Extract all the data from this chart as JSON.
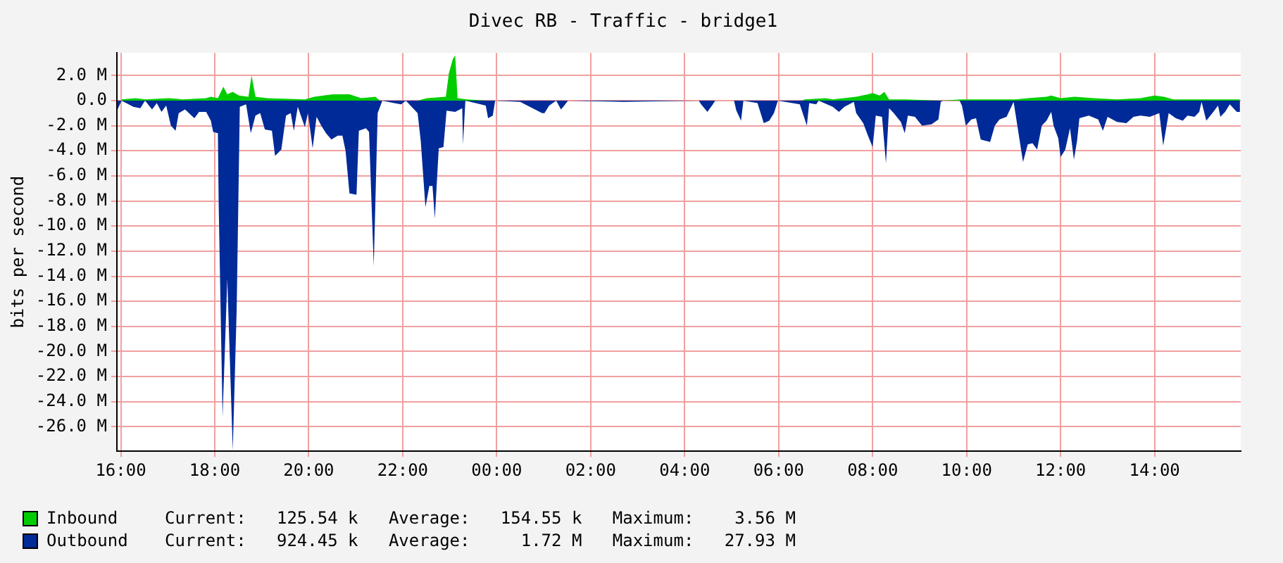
{
  "chart_data": {
    "type": "area",
    "title": "Divec RB - Traffic - bridge1",
    "ylabel": "bits per second",
    "xlim": [
      "--01-01T15:55",
      "--01-02T15:50"
    ],
    "xticks": [
      {
        "value": "--01-01T16:00",
        "label": "16:00"
      },
      {
        "value": "--01-01T18:00",
        "label": "18:00"
      },
      {
        "value": "--01-01T20:00",
        "label": "20:00"
      },
      {
        "value": "--01-01T22:00",
        "label": "22:00"
      },
      {
        "value": "--01-02T00:00",
        "label": "00:00"
      },
      {
        "value": "--01-02T02:00",
        "label": "02:00"
      },
      {
        "value": "--01-02T04:00",
        "label": "04:00"
      },
      {
        "value": "--01-02T06:00",
        "label": "06:00"
      },
      {
        "value": "--01-02T08:00",
        "label": "08:00"
      },
      {
        "value": "--01-02T10:00",
        "label": "10:00"
      },
      {
        "value": "--01-02T12:00",
        "label": "12:00"
      },
      {
        "value": "--01-02T14:00",
        "label": "14:00"
      }
    ],
    "ylim": [
      -27.95,
      3.8
    ],
    "yticks": [
      {
        "value": 2,
        "label": "2.0 M"
      },
      {
        "value": 0,
        "label": "0.0"
      },
      {
        "value": -2,
        "label": "-2.0 M"
      },
      {
        "value": -4,
        "label": "-4.0 M"
      },
      {
        "value": -6,
        "label": "-6.0 M"
      },
      {
        "value": -8,
        "label": "-8.0 M"
      },
      {
        "value": -10,
        "label": "-10.0 M"
      },
      {
        "value": -12,
        "label": "-12.0 M"
      },
      {
        "value": -14,
        "label": "-14.0 M"
      },
      {
        "value": -16,
        "label": "-16.0 M"
      },
      {
        "value": -18,
        "label": "-18.0 M"
      },
      {
        "value": -20,
        "label": "-20.0 M"
      },
      {
        "value": -22,
        "label": "-22.0 M"
      },
      {
        "value": -24,
        "label": "-24.0 M"
      },
      {
        "value": -26,
        "label": "-26.0 M"
      }
    ],
    "grid": true,
    "legend": "bottom left",
    "series": [
      {
        "name": "Inbound",
        "color": "#00cc00",
        "x": [
          "--01-01T16:01",
          "--01-01T16:19",
          "--01-01T16:31",
          "--01-01T17:01",
          "--01-01T17:19",
          "--01-01T17:49",
          "--01-01T17:55",
          "--01-01T18:04",
          "--01-01T18:11",
          "--01-01T18:16",
          "--01-01T18:23",
          "--01-01T18:31",
          "--01-01T18:43",
          "--01-01T18:47",
          "--01-01T18:52",
          "--01-01T19:07",
          "--01-01T19:55",
          "--01-01T20:07",
          "--01-01T20:31",
          "--01-01T20:52",
          "--01-01T21:07",
          "--01-01T21:25",
          "--01-01T21:31",
          "--01-01T22:19",
          "--01-01T22:31",
          "--01-01T22:55",
          "--01-01T22:59",
          "--01-01T23:04",
          "--01-01T23:07",
          "--01-01T23:10",
          "--01-01T23:22",
          "--01-01T23:49",
          "--01-02T00:31",
          "--01-02T06:30",
          "--01-02T06:33",
          "--01-02T07:00",
          "--01-02T07:09",
          "--01-02T07:39",
          "--01-02T07:54",
          "--01-02T08:00",
          "--01-02T08:09",
          "--01-02T08:15",
          "--01-02T08:21",
          "--01-02T08:42",
          "--01-02T09:27",
          "--01-02T09:54",
          "--01-02T11:03",
          "--01-02T11:18",
          "--01-02T11:42",
          "--01-02T11:48",
          "--01-02T12:00",
          "--01-02T12:18",
          "--01-02T12:42",
          "--01-02T13:12",
          "--01-02T13:42",
          "--01-02T14:00",
          "--01-02T14:12",
          "--01-02T14:24",
          "--01-02T15:00",
          "--01-02T15:49"
        ],
        "values": [
          0.1,
          0.2,
          0.1,
          0.2,
          0.1,
          0.2,
          0.3,
          0.2,
          1.1,
          0.5,
          0.7,
          0.4,
          0.3,
          2.0,
          0.3,
          0.2,
          0.1,
          0.3,
          0.5,
          0.5,
          0.2,
          0.3,
          0,
          0,
          0.2,
          0.3,
          2.2,
          3.3,
          3.6,
          0.2,
          0.1,
          0,
          0,
          0,
          0.1,
          0.2,
          0.1,
          0.3,
          0.5,
          0.6,
          0.4,
          0.7,
          0.1,
          0.1,
          0,
          0.1,
          0.1,
          0.2,
          0.3,
          0.4,
          0.2,
          0.3,
          0.2,
          0.1,
          0.2,
          0.4,
          0.3,
          0.1,
          0.1,
          0.1
        ]
      },
      {
        "name": "Outbound",
        "color": "#002a97",
        "x": [
          "--01-01T15:56",
          "--01-01T16:01",
          "--01-01T16:16",
          "--01-01T16:25",
          "--01-01T16:31",
          "--01-01T16:40",
          "--01-01T16:46",
          "--01-01T16:52",
          "--01-01T16:58",
          "--01-01T17:04",
          "--01-01T17:10",
          "--01-01T17:14",
          "--01-01T17:22",
          "--01-01T17:34",
          "--01-01T17:40",
          "--01-01T17:49",
          "--01-01T17:55",
          "--01-01T17:58",
          "--01-01T18:04",
          "--01-01T18:05",
          "--01-01T18:10",
          "--01-01T18:16",
          "--01-01T18:23",
          "--01-01T18:28",
          "--01-01T18:32",
          "--01-01T18:40",
          "--01-01T18:46",
          "--01-01T18:52",
          "--01-01T18:58",
          "--01-01T19:04",
          "--01-01T19:13",
          "--01-01T19:17",
          "--01-01T19:25",
          "--01-01T19:31",
          "--01-01T19:37",
          "--01-01T19:41",
          "--01-01T19:46",
          "--01-01T19:55",
          "--01-01T19:59",
          "--01-01T20:05",
          "--01-01T20:10",
          "--01-01T20:16",
          "--01-01T20:22",
          "--01-01T20:29",
          "--01-01T20:37",
          "--01-01T20:43",
          "--01-01T20:47",
          "--01-01T20:52",
          "--01-01T21:01",
          "--01-01T21:04",
          "--01-01T21:13",
          "--01-01T21:17",
          "--01-01T21:23",
          "--01-01T21:28",
          "--01-01T21:34",
          "--01-01T21:49",
          "--01-01T21:58",
          "--01-01T22:04",
          "--01-01T22:19",
          "--01-01T22:23",
          "--01-01T22:29",
          "--01-01T22:34",
          "--01-01T22:38",
          "--01-01T22:41",
          "--01-01T22:46",
          "--01-01T22:52",
          "--01-01T22:56",
          "--01-01T23:07",
          "--01-01T23:16",
          "--01-01T23:17",
          "--01-01T23:20",
          "--01-01T23:46",
          "--01-01T23:49",
          "--01-01T23:55",
          "--01-01T23:58",
          "--01-02T00:30",
          "--01-02T00:58",
          "--01-02T01:01",
          "--01-02T01:07",
          "--01-02T01:16",
          "--01-02T01:22",
          "--01-02T01:25",
          "--01-02T01:31",
          "--01-02T02:42",
          "--01-02T04:18",
          "--01-02T04:21",
          "--01-02T04:29",
          "--01-02T04:36",
          "--01-02T04:39",
          "--01-02T05:03",
          "--01-02T05:06",
          "--01-02T05:12",
          "--01-02T05:15",
          "--01-02T05:33",
          "--01-02T05:41",
          "--01-02T05:48",
          "--01-02T05:54",
          "--01-02T05:59",
          "--01-02T06:27",
          "--01-02T06:36",
          "--01-02T06:39",
          "--01-02T06:48",
          "--01-02T06:51",
          "--01-02T07:09",
          "--01-02T07:17",
          "--01-02T07:24",
          "--01-02T07:36",
          "--01-02T07:39",
          "--01-02T07:48",
          "--01-02T07:54",
          "--01-02T08:00",
          "--01-02T08:04",
          "--01-02T08:12",
          "--01-02T08:17",
          "--01-02T08:21",
          "--01-02T08:27",
          "--01-02T08:36",
          "--01-02T08:41",
          "--01-02T08:45",
          "--01-02T08:54",
          "--01-02T09:03",
          "--01-02T09:15",
          "--01-02T09:24",
          "--01-02T09:27",
          "--01-02T09:30",
          "--01-02T09:51",
          "--01-02T09:54",
          "--01-02T09:59",
          "--01-02T10:06",
          "--01-02T10:12",
          "--01-02T10:18",
          "--01-02T10:30",
          "--01-02T10:36",
          "--01-02T10:42",
          "--01-02T10:51",
          "--01-02T11:00",
          "--01-02T11:06",
          "--01-02T11:12",
          "--01-02T11:18",
          "--01-02T11:24",
          "--01-02T11:30",
          "--01-02T11:36",
          "--01-02T11:42",
          "--01-02T11:48",
          "--01-02T11:51",
          "--01-02T11:57",
          "--01-02T12:00",
          "--01-02T12:06",
          "--01-02T12:12",
          "--01-02T12:17",
          "--01-02T12:21",
          "--01-02T12:24",
          "--01-02T12:36",
          "--01-02T12:48",
          "--01-02T12:54",
          "--01-02T13:00",
          "--01-02T13:12",
          "--01-02T13:24",
          "--01-02T13:33",
          "--01-02T13:42",
          "--01-02T13:54",
          "--01-02T14:06",
          "--01-02T14:11",
          "--01-02T14:18",
          "--01-02T14:27",
          "--01-02T14:36",
          "--01-02T14:42",
          "--01-02T14:51",
          "--01-02T14:57",
          "--01-02T15:00",
          "--01-02T15:06",
          "--01-02T15:15",
          "--01-02T15:21",
          "--01-02T15:24",
          "--01-02T15:30",
          "--01-02T15:36",
          "--01-02T15:45",
          "--01-02T15:49"
        ],
        "values": [
          -0.7,
          0,
          -0.5,
          -0.6,
          0,
          -0.7,
          -0.2,
          -0.9,
          -0.4,
          -2.0,
          -2.4,
          -1.0,
          -0.7,
          -1.4,
          -0.9,
          -0.9,
          -1.6,
          -2.5,
          -2.6,
          -8.2,
          -25.2,
          -14.2,
          -27.9,
          -16.6,
          -0.5,
          -0.3,
          -2.6,
          -1.2,
          -1.0,
          -2.3,
          -2.4,
          -4.4,
          -3.9,
          -1.2,
          -1.0,
          -2.4,
          -0.5,
          -2.1,
          -1.0,
          -3.8,
          -1.3,
          -2.0,
          -2.6,
          -3.1,
          -2.8,
          -2.8,
          -4.0,
          -7.4,
          -7.5,
          -2.4,
          -2.2,
          -2.5,
          -13.2,
          -1.0,
          0,
          -0.2,
          -0.3,
          0,
          -1.0,
          -3.2,
          -8.5,
          -6.8,
          -6.8,
          -9.4,
          -3.8,
          -3.7,
          -0.8,
          -0.9,
          -0.6,
          -3.5,
          0,
          -0.4,
          -1.4,
          -1.2,
          0,
          -0.1,
          -1.0,
          -1.0,
          -0.4,
          0,
          -0.7,
          -0.5,
          0,
          -0.1,
          0,
          -0.3,
          -0.9,
          -0.3,
          0,
          0,
          -0.8,
          -1.6,
          0,
          -0.2,
          -1.8,
          -1.6,
          -1.0,
          0,
          -0.3,
          -2.0,
          -0.2,
          -0.3,
          0,
          -0.5,
          -0.9,
          -0.5,
          -0.1,
          -1.0,
          -1.8,
          -2.8,
          -3.7,
          -1.2,
          -1.3,
          -5.0,
          -0.6,
          -1.0,
          -1.7,
          -2.6,
          -1.2,
          -1.3,
          -2.0,
          -1.9,
          -1.5,
          -0.1,
          0,
          0,
          -0.4,
          -2.0,
          -1.5,
          -1.4,
          -3.1,
          -3.3,
          -2.0,
          -1.5,
          -1.3,
          -0.1,
          -2.5,
          -4.9,
          -3.5,
          -3.4,
          -3.9,
          -2.0,
          -1.6,
          -0.9,
          -2.0,
          -3.0,
          -4.5,
          -3.9,
          -2.2,
          -4.7,
          -3.2,
          -1.4,
          -1.2,
          -1.5,
          -2.4,
          -1.3,
          -1.7,
          -1.8,
          -1.3,
          -1.2,
          -1.3,
          -1.0,
          -3.6,
          -1.0,
          -1.4,
          -1.6,
          -1.2,
          -1.3,
          -0.9,
          -0.1,
          -1.6,
          -0.9,
          -0.4,
          -1.3,
          -0.9,
          -0.3,
          -0.9,
          -0.9
        ]
      }
    ],
    "annotations": [
      "Current:   125.54 k   Average:   154.55 k   Maximum:    3.56 M",
      "Current:   924.45 k   Average:     1.72 M   Maximum:   27.93 M"
    ]
  }
}
